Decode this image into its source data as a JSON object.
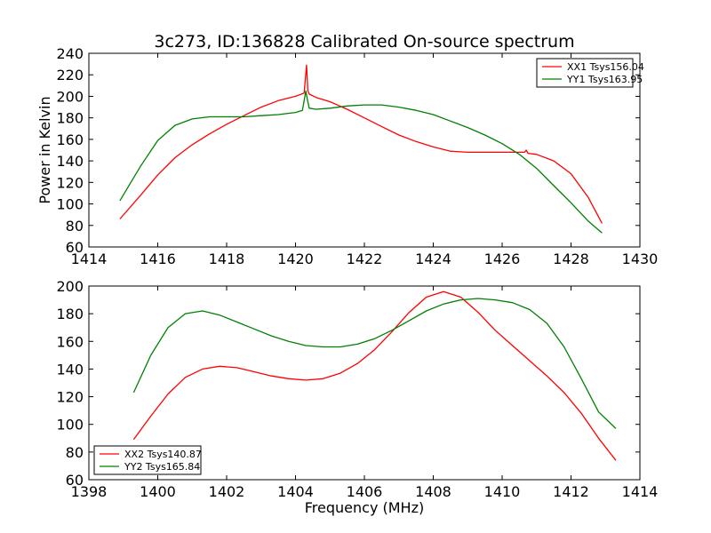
{
  "title": "3c273, ID:136828 Calibrated On-source spectrum",
  "chart_data": [
    {
      "type": "line",
      "xlabel": "",
      "ylabel": "Power in Kelvin",
      "xlim": [
        1414,
        1430
      ],
      "ylim": [
        60,
        240
      ],
      "xticks": [
        1414,
        1416,
        1418,
        1420,
        1422,
        1424,
        1426,
        1428,
        1430
      ],
      "yticks": [
        60,
        80,
        100,
        120,
        140,
        160,
        180,
        200,
        220,
        240
      ],
      "legend_position": "top-right",
      "grid": false,
      "series": [
        {
          "name": "XX1 Tsys156.04",
          "color": "#ff0000",
          "x": [
            1414.9,
            1415.5,
            1416.0,
            1416.5,
            1417.0,
            1417.5,
            1418.0,
            1418.5,
            1419.0,
            1419.5,
            1420.0,
            1420.25,
            1420.32,
            1420.36,
            1420.4,
            1420.6,
            1421.0,
            1421.5,
            1422.0,
            1422.5,
            1423.0,
            1423.5,
            1424.0,
            1424.5,
            1425.0,
            1425.5,
            1426.0,
            1426.5,
            1426.65,
            1426.7,
            1426.75,
            1427.0,
            1427.5,
            1428.0,
            1428.5,
            1428.9
          ],
          "y": [
            86,
            108,
            127,
            143,
            155,
            165,
            174,
            182,
            190,
            196,
            200,
            203,
            229,
            205,
            202,
            199,
            195,
            188,
            180,
            172,
            164,
            158,
            153,
            149,
            148,
            148,
            148,
            148,
            148,
            150,
            147,
            146,
            140,
            128,
            106,
            82
          ]
        },
        {
          "name": "YY1 Tsys163.95",
          "color": "#008000",
          "x": [
            1414.9,
            1415.5,
            1416.0,
            1416.5,
            1417.0,
            1417.5,
            1418.0,
            1418.5,
            1419.0,
            1419.5,
            1420.0,
            1420.2,
            1420.3,
            1420.35,
            1420.4,
            1420.6,
            1421.0,
            1421.5,
            1422.0,
            1422.5,
            1423.0,
            1423.5,
            1424.0,
            1424.5,
            1425.0,
            1425.5,
            1426.0,
            1426.5,
            1427.0,
            1427.5,
            1428.0,
            1428.5,
            1428.9
          ],
          "y": [
            103,
            135,
            159,
            173,
            179,
            181,
            181,
            181,
            182,
            183,
            185,
            187,
            205,
            196,
            189,
            188,
            189,
            191,
            192,
            192,
            190,
            187,
            183,
            177,
            171,
            164,
            156,
            146,
            133,
            117,
            101,
            84,
            73
          ]
        }
      ]
    },
    {
      "type": "line",
      "xlabel": "Frequency (MHz)",
      "ylabel": "",
      "xlim": [
        1398,
        1414
      ],
      "ylim": [
        60,
        200
      ],
      "xticks": [
        1398,
        1400,
        1402,
        1404,
        1406,
        1408,
        1410,
        1412,
        1414
      ],
      "yticks": [
        60,
        80,
        100,
        120,
        140,
        160,
        180,
        200
      ],
      "legend_position": "bottom-left",
      "grid": false,
      "series": [
        {
          "name": "XX2 Tsys140.87",
          "color": "#ff0000",
          "x": [
            1399.3,
            1399.8,
            1400.3,
            1400.8,
            1401.3,
            1401.8,
            1402.3,
            1402.8,
            1403.3,
            1403.8,
            1404.3,
            1404.8,
            1405.3,
            1405.8,
            1406.3,
            1406.8,
            1407.3,
            1407.8,
            1408.3,
            1408.8,
            1409.3,
            1409.8,
            1410.3,
            1410.8,
            1411.3,
            1411.8,
            1412.3,
            1412.8,
            1413.3
          ],
          "y": [
            89,
            106,
            122,
            134,
            140,
            142,
            141,
            138,
            135,
            133,
            132,
            133,
            137,
            144,
            154,
            167,
            181,
            192,
            196,
            192,
            181,
            168,
            157,
            146,
            135,
            123,
            108,
            90,
            74
          ]
        },
        {
          "name": "YY2 Tsys165.84",
          "color": "#008000",
          "x": [
            1399.3,
            1399.8,
            1400.3,
            1400.8,
            1401.3,
            1401.8,
            1402.3,
            1402.8,
            1403.3,
            1403.8,
            1404.3,
            1404.8,
            1405.3,
            1405.8,
            1406.3,
            1406.8,
            1407.3,
            1407.8,
            1408.3,
            1408.8,
            1409.3,
            1409.8,
            1410.3,
            1410.8,
            1411.3,
            1411.8,
            1412.3,
            1412.8,
            1413.3
          ],
          "y": [
            123,
            150,
            170,
            180,
            182,
            179,
            174,
            169,
            164,
            160,
            157,
            156,
            156,
            158,
            162,
            168,
            175,
            182,
            187,
            190,
            191,
            190,
            188,
            183,
            173,
            156,
            133,
            109,
            97
          ]
        }
      ]
    }
  ]
}
